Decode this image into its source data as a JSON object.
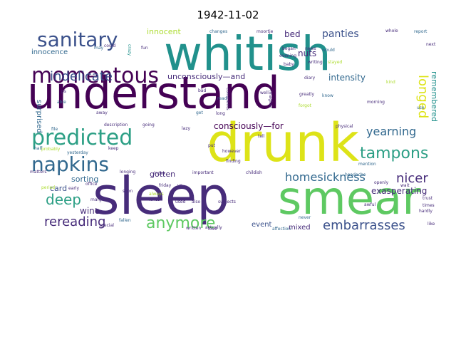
{
  "title": "1942-11-02",
  "colors": {
    "dark_purple": "#440154",
    "purple": "#472c7a",
    "blue": "#3b518b",
    "steel": "#31688e",
    "teal": "#21918c",
    "seagreen": "#2c9f85",
    "green": "#5ec962",
    "lime": "#addc30",
    "yellow": "#dde318"
  },
  "words": [
    {
      "text": "understand",
      "color": "dark_purple"
    },
    {
      "text": "whitish",
      "color": "teal"
    },
    {
      "text": "drunk",
      "color": "yellow"
    },
    {
      "text": "sleep",
      "color": "purple"
    },
    {
      "text": "smear",
      "color": "green"
    },
    {
      "text": "predicted",
      "color": "seagreen"
    },
    {
      "text": "momentous",
      "color": "dark_purple"
    },
    {
      "text": "sanitary",
      "color": "blue"
    },
    {
      "text": "napkins",
      "color": "steel"
    },
    {
      "text": "tampons",
      "color": "seagreen"
    },
    {
      "text": "anymore",
      "color": "green"
    },
    {
      "text": "indelicate",
      "color": "blue"
    },
    {
      "text": "longed",
      "color": "yellow"
    },
    {
      "text": "rereading",
      "color": "purple"
    },
    {
      "text": "embarrasses",
      "color": "blue"
    },
    {
      "text": "homesickness",
      "color": "steel"
    },
    {
      "text": "yearning",
      "color": "steel"
    },
    {
      "text": "deep",
      "color": "seagreen"
    },
    {
      "text": "nicer",
      "color": "purple"
    },
    {
      "text": "panties",
      "color": "blue"
    },
    {
      "text": "intensity",
      "color": "steel"
    },
    {
      "text": "consciously—for",
      "color": "dark_purple"
    },
    {
      "text": "unconsciously—and",
      "color": "purple"
    },
    {
      "text": "exasperating",
      "color": "purple"
    },
    {
      "text": "innocent",
      "color": "lime"
    },
    {
      "text": "innocence",
      "color": "steel"
    },
    {
      "text": "remembered",
      "color": "teal"
    },
    {
      "text": "surprised",
      "color": "steel"
    },
    {
      "text": "sorting",
      "color": "steel"
    },
    {
      "text": "gotten",
      "color": "purple"
    },
    {
      "text": "wine",
      "color": "purple"
    },
    {
      "text": "card",
      "color": "blue"
    },
    {
      "text": "event",
      "color": "blue"
    },
    {
      "text": "mixed",
      "color": "purple"
    },
    {
      "text": "nuts",
      "color": "purple"
    },
    {
      "text": "bed",
      "color": "purple"
    },
    {
      "text": "changes",
      "color": "steel"
    },
    {
      "text": "moortje",
      "color": "purple"
    },
    {
      "text": "whole",
      "color": "purple"
    },
    {
      "text": "report",
      "color": "steel"
    },
    {
      "text": "crazy",
      "color": "teal"
    },
    {
      "text": "fun",
      "color": "purple"
    },
    {
      "text": "may",
      "color": "steel"
    },
    {
      "text": "began",
      "color": "purple"
    },
    {
      "text": "evening",
      "color": "purple"
    },
    {
      "text": "writing",
      "color": "purple"
    },
    {
      "text": "stayed",
      "color": "lime"
    },
    {
      "text": "news",
      "color": "purple"
    },
    {
      "text": "would",
      "color": "steel"
    },
    {
      "text": "diary",
      "color": "purple"
    },
    {
      "text": "kind",
      "color": "lime"
    },
    {
      "text": "bad",
      "color": "purple"
    },
    {
      "text": "read",
      "color": "steel"
    },
    {
      "text": "well",
      "color": "purple"
    },
    {
      "text": "greatly",
      "color": "purple"
    },
    {
      "text": "know",
      "color": "steel"
    },
    {
      "text": "forgot",
      "color": "lime"
    },
    {
      "text": "morning",
      "color": "purple"
    },
    {
      "text": "use",
      "color": "steel"
    },
    {
      "text": "able",
      "color": "steel"
    },
    {
      "text": "away",
      "color": "purple"
    },
    {
      "text": "get",
      "color": "steel"
    },
    {
      "text": "long",
      "color": "purple"
    },
    {
      "text": "going",
      "color": "purple"
    },
    {
      "text": "description",
      "color": "purple"
    },
    {
      "text": "lazy",
      "color": "purple"
    },
    {
      "text": "actually",
      "color": "purple"
    },
    {
      "text": "tell",
      "color": "purple"
    },
    {
      "text": "physical",
      "color": "purple"
    },
    {
      "text": "file",
      "color": "steel"
    },
    {
      "text": "keep",
      "color": "purple"
    },
    {
      "text": "however",
      "color": "purple"
    },
    {
      "text": "finding",
      "color": "purple"
    },
    {
      "text": "put",
      "color": "purple"
    },
    {
      "text": "mention",
      "color": "steel"
    },
    {
      "text": "headache",
      "color": "steel"
    },
    {
      "text": "matters",
      "color": "purple"
    },
    {
      "text": "longing",
      "color": "purple"
    },
    {
      "text": "index",
      "color": "purple"
    },
    {
      "text": "important",
      "color": "purple"
    },
    {
      "text": "childish",
      "color": "purple"
    },
    {
      "text": "friday",
      "color": "purple"
    },
    {
      "text": "early",
      "color": "purple"
    },
    {
      "text": "soon",
      "color": "purple"
    },
    {
      "text": "margot",
      "color": "purple"
    },
    {
      "text": "write",
      "color": "purple"
    },
    {
      "text": "us",
      "color": "purple"
    },
    {
      "text": "also",
      "color": "purple"
    },
    {
      "text": "used",
      "color": "purple"
    },
    {
      "text": "subjects",
      "color": "purple"
    },
    {
      "text": "awful",
      "color": "purple"
    },
    {
      "text": "openly",
      "color": "purple"
    },
    {
      "text": "wait",
      "color": "purple"
    },
    {
      "text": "trust",
      "color": "purple"
    },
    {
      "text": "times",
      "color": "purple"
    },
    {
      "text": "hardly",
      "color": "purple"
    },
    {
      "text": "like",
      "color": "purple"
    },
    {
      "text": "fallen",
      "color": "steel"
    },
    {
      "text": "special",
      "color": "purple"
    },
    {
      "text": "written",
      "color": "purple"
    },
    {
      "text": "love",
      "color": "purple"
    },
    {
      "text": "affection",
      "color": "steel"
    },
    {
      "text": "never",
      "color": "steel"
    },
    {
      "text": "office",
      "color": "purple"
    },
    {
      "text": "always",
      "color": "lime"
    },
    {
      "text": "period",
      "color": "lime"
    },
    {
      "text": "half",
      "color": "steel"
    },
    {
      "text": "probably",
      "color": "lime"
    },
    {
      "text": "yesterday",
      "color": "steel"
    },
    {
      "text": "could",
      "color": "purple"
    },
    {
      "text": "next",
      "color": "purple"
    },
    {
      "text": "ps",
      "color": "purple"
    },
    {
      "text": "baby",
      "color": "purple"
    },
    {
      "text": "comments",
      "color": "purple"
    },
    {
      "text": "imagine",
      "color": "purple"
    }
  ]
}
